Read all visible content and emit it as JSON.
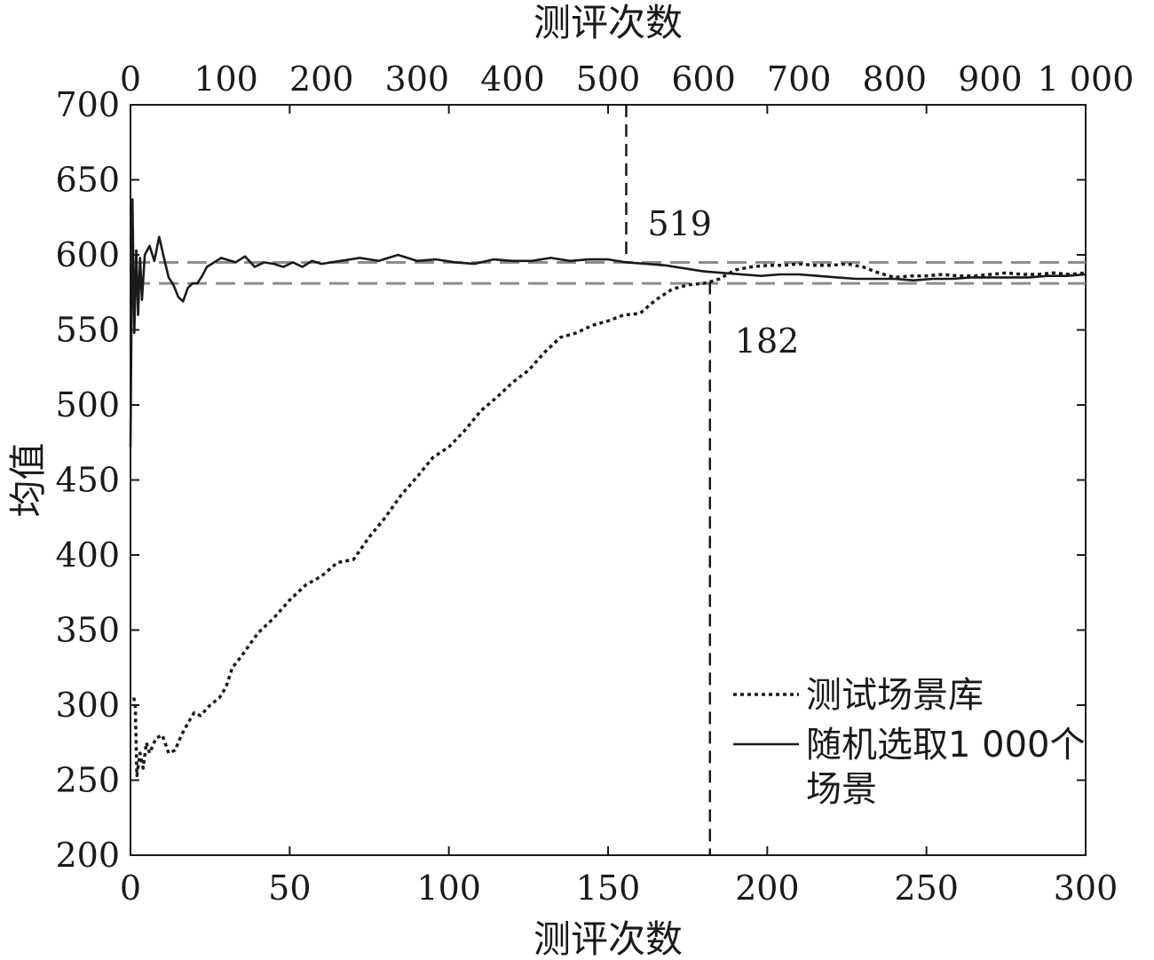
{
  "chart_data": {
    "type": "line",
    "title": "",
    "xlabel_bottom": "测评次数",
    "xlabel_top": "测评次数",
    "ylabel": "均值",
    "x_bottom_range": [
      0,
      300
    ],
    "x_top_range": [
      0,
      1000
    ],
    "ylim": [
      200,
      700
    ],
    "x_bottom_ticks": [
      "0",
      "50",
      "100",
      "150",
      "200",
      "250",
      "300"
    ],
    "x_top_ticks": [
      "0",
      "100",
      "200",
      "300",
      "400",
      "500",
      "600",
      "700",
      "800",
      "900",
      "1 000"
    ],
    "y_ticks": [
      "200",
      "250",
      "300",
      "350",
      "400",
      "450",
      "500",
      "550",
      "600",
      "650",
      "700"
    ],
    "grid": false,
    "legend_position": "bottom-right",
    "reference_lines": [
      595,
      581
    ],
    "annotations": [
      {
        "label": "519",
        "x_axis": "top",
        "x": 519
      },
      {
        "label": "182",
        "x_axis": "bottom",
        "x": 182
      }
    ],
    "series": [
      {
        "name": "测试场景库",
        "x_axis": "bottom",
        "style": "dotted",
        "x": [
          1,
          1.5,
          2,
          3,
          4,
          5,
          6,
          8,
          10,
          12,
          14,
          16,
          18,
          20,
          22,
          25,
          28,
          30,
          32,
          35,
          40,
          45,
          50,
          55,
          60,
          65,
          70,
          75,
          80,
          85,
          90,
          95,
          100,
          105,
          110,
          115,
          120,
          125,
          130,
          135,
          140,
          145,
          150,
          155,
          160,
          165,
          170,
          175,
          180,
          182,
          185,
          190,
          195,
          200,
          205,
          210,
          215,
          220,
          225,
          230,
          235,
          240,
          245,
          250,
          255,
          260,
          265,
          270,
          275,
          280,
          285,
          290,
          295,
          300
        ],
        "y": [
          305,
          300,
          253,
          268,
          258,
          275,
          268,
          278,
          280,
          268,
          270,
          280,
          288,
          295,
          293,
          300,
          305,
          312,
          325,
          333,
          348,
          358,
          370,
          380,
          386,
          395,
          397,
          412,
          425,
          440,
          452,
          465,
          472,
          483,
          496,
          505,
          515,
          523,
          535,
          545,
          548,
          553,
          556,
          560,
          561,
          570,
          577,
          580,
          581,
          582,
          584,
          590,
          592,
          593,
          593,
          594,
          593,
          593,
          594,
          592,
          588,
          585,
          586,
          586,
          587,
          586,
          586,
          587,
          588,
          587,
          587,
          588,
          587,
          588
        ]
      },
      {
        "name": "随机选取1 000个场景",
        "x_axis": "top",
        "style": "solid",
        "x": [
          0,
          2,
          4,
          6,
          8,
          10,
          12,
          15,
          20,
          25,
          30,
          35,
          40,
          45,
          50,
          55,
          60,
          65,
          70,
          75,
          80,
          85,
          90,
          95,
          100,
          110,
          120,
          130,
          140,
          150,
          160,
          170,
          180,
          190,
          200,
          220,
          240,
          260,
          280,
          300,
          320,
          340,
          360,
          380,
          400,
          420,
          440,
          460,
          480,
          500,
          519,
          540,
          560,
          580,
          600,
          620,
          640,
          660,
          680,
          700,
          720,
          740,
          760,
          780,
          800,
          820,
          840,
          860,
          880,
          900,
          920,
          940,
          960,
          980,
          1000
        ],
        "y": [
          472,
          637,
          548,
          603,
          560,
          598,
          570,
          600,
          606,
          596,
          612,
          598,
          585,
          580,
          572,
          569,
          578,
          581,
          581,
          586,
          592,
          594,
          596,
          598,
          597,
          595,
          599,
          592,
          595,
          594,
          592,
          595,
          592,
          596,
          594,
          596,
          598,
          596,
          600,
          596,
          597,
          595,
          594,
          597,
          596,
          596,
          598,
          596,
          597,
          597,
          595,
          594,
          593,
          591,
          589,
          588,
          587,
          586,
          587,
          587,
          586,
          585,
          584,
          584,
          584,
          583,
          584,
          584,
          585,
          585,
          585,
          585,
          586,
          586,
          587
        ]
      }
    ],
    "colors": {
      "series": "#1a1a1a",
      "reference_line": "#8c8c8c",
      "axis": "#1a1a1a"
    }
  }
}
